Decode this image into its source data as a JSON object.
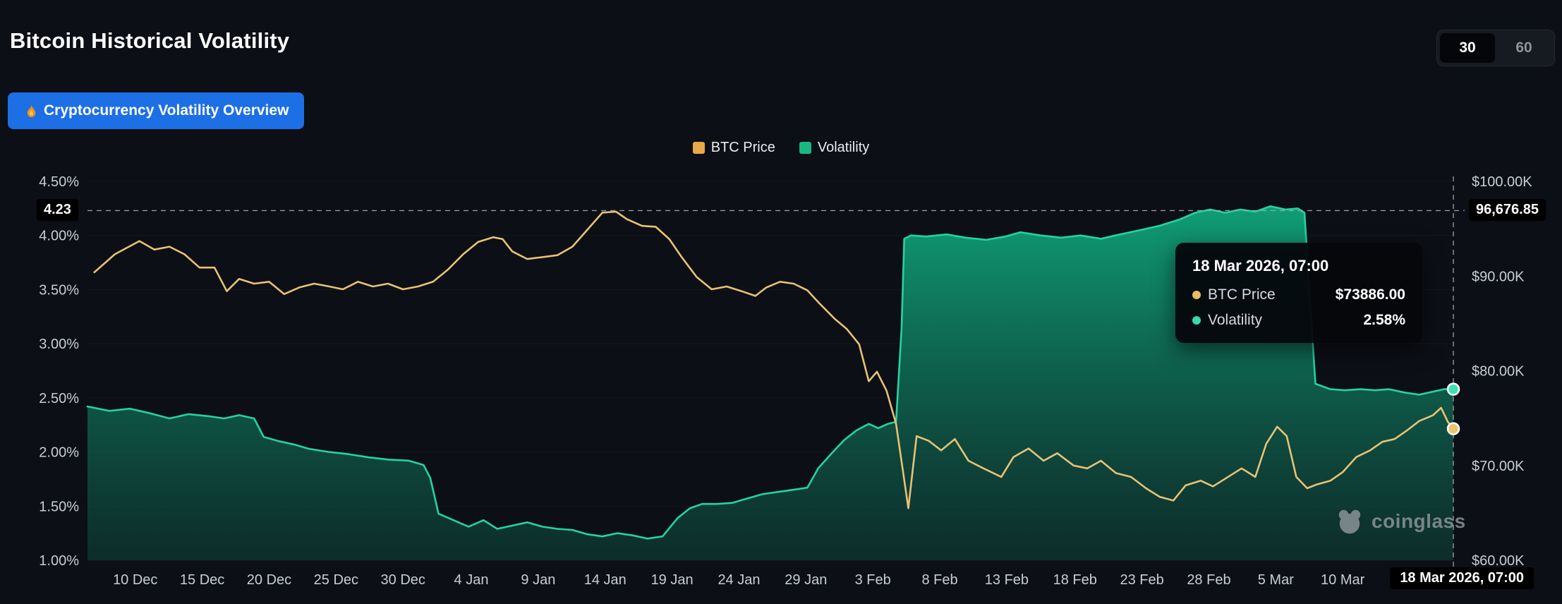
{
  "header": {
    "title": "Bitcoin Historical Volatility",
    "periods": [
      "30",
      "60"
    ],
    "active_period": "30"
  },
  "overview_button": {
    "label": "Cryptocurrency Volatility Overview",
    "icon": "fire-icon"
  },
  "legend": {
    "items": [
      {
        "label": "BTC Price",
        "color": "#e9a84a"
      },
      {
        "label": "Volatility",
        "color": "#19b883"
      }
    ]
  },
  "watermark": {
    "text": "coinglass"
  },
  "chart_data": {
    "type": "line",
    "title": "Bitcoin Historical Volatility",
    "grid": false,
    "legend_position": "top-center",
    "left_axis": {
      "min": 1.0,
      "max": 4.5,
      "unit": "%",
      "ticks": [
        {
          "value": 4.5,
          "label": "4.50%"
        },
        {
          "value": 4.0,
          "label": "4.00%"
        },
        {
          "value": 3.5,
          "label": "3.50%"
        },
        {
          "value": 3.0,
          "label": "3.00%"
        },
        {
          "value": 2.5,
          "label": "2.50%"
        },
        {
          "value": 2.0,
          "label": "2.00%"
        },
        {
          "value": 1.5,
          "label": "1.50%"
        },
        {
          "value": 1.0,
          "label": "1.00%"
        }
      ]
    },
    "right_axis": {
      "min": 60,
      "max": 100,
      "unit": "$K",
      "ticks": [
        {
          "value": 100,
          "label": "$100.00K"
        },
        {
          "value": 90,
          "label": "$90.00K"
        },
        {
          "value": 80,
          "label": "$80.00K"
        },
        {
          "value": 70,
          "label": "$70.00K"
        },
        {
          "value": 60,
          "label": "$60.00K"
        }
      ]
    },
    "x_axis": {
      "ticks": [
        {
          "label": "10 Dec",
          "f": 0.035
        },
        {
          "label": "15 Dec",
          "f": 0.084
        },
        {
          "label": "20 Dec",
          "f": 0.133
        },
        {
          "label": "25 Dec",
          "f": 0.182
        },
        {
          "label": "30 Dec",
          "f": 0.231
        },
        {
          "label": "4 Jan",
          "f": 0.281
        },
        {
          "label": "9 Jan",
          "f": 0.33
        },
        {
          "label": "14 Jan",
          "f": 0.379
        },
        {
          "label": "19 Jan",
          "f": 0.428
        },
        {
          "label": "24 Jan",
          "f": 0.477
        },
        {
          "label": "29 Jan",
          "f": 0.526
        },
        {
          "label": "3 Feb",
          "f": 0.575
        },
        {
          "label": "8 Feb",
          "f": 0.624
        },
        {
          "label": "13 Feb",
          "f": 0.673
        },
        {
          "label": "18 Feb",
          "f": 0.723
        },
        {
          "label": "23 Feb",
          "f": 0.772
        },
        {
          "label": "28 Feb",
          "f": 0.821
        },
        {
          "label": "5 Mar",
          "f": 0.87
        },
        {
          "label": "10 Mar",
          "f": 0.919
        }
      ]
    },
    "series": [
      {
        "name": "BTC Price",
        "axis": "right",
        "unit": "$K",
        "color": "#e8c272",
        "points": [
          [
            0.005,
            90.4
          ],
          [
            0.02,
            92.3
          ],
          [
            0.038,
            93.7
          ],
          [
            0.049,
            92.8
          ],
          [
            0.06,
            93.1
          ],
          [
            0.071,
            92.3
          ],
          [
            0.082,
            90.9
          ],
          [
            0.093,
            90.9
          ],
          [
            0.102,
            88.4
          ],
          [
            0.111,
            89.7
          ],
          [
            0.122,
            89.2
          ],
          [
            0.133,
            89.4
          ],
          [
            0.144,
            88.1
          ],
          [
            0.155,
            88.8
          ],
          [
            0.166,
            89.2
          ],
          [
            0.177,
            88.9
          ],
          [
            0.187,
            88.6
          ],
          [
            0.198,
            89.4
          ],
          [
            0.209,
            88.9
          ],
          [
            0.22,
            89.2
          ],
          [
            0.231,
            88.6
          ],
          [
            0.242,
            88.9
          ],
          [
            0.253,
            89.4
          ],
          [
            0.264,
            90.7
          ],
          [
            0.275,
            92.3
          ],
          [
            0.286,
            93.6
          ],
          [
            0.297,
            94.1
          ],
          [
            0.304,
            93.9
          ],
          [
            0.311,
            92.6
          ],
          [
            0.322,
            91.8
          ],
          [
            0.333,
            92.0
          ],
          [
            0.344,
            92.2
          ],
          [
            0.355,
            93.1
          ],
          [
            0.366,
            94.9
          ],
          [
            0.377,
            96.7
          ],
          [
            0.387,
            96.8
          ],
          [
            0.395,
            96.0
          ],
          [
            0.406,
            95.3
          ],
          [
            0.416,
            95.2
          ],
          [
            0.426,
            93.9
          ],
          [
            0.435,
            92.0
          ],
          [
            0.446,
            89.9
          ],
          [
            0.457,
            88.6
          ],
          [
            0.468,
            88.9
          ],
          [
            0.479,
            88.4
          ],
          [
            0.489,
            87.9
          ],
          [
            0.497,
            88.8
          ],
          [
            0.507,
            89.4
          ],
          [
            0.517,
            89.2
          ],
          [
            0.527,
            88.5
          ],
          [
            0.536,
            87.1
          ],
          [
            0.547,
            85.5
          ],
          [
            0.556,
            84.4
          ],
          [
            0.565,
            82.8
          ],
          [
            0.572,
            78.9
          ],
          [
            0.578,
            79.9
          ],
          [
            0.585,
            77.9
          ],
          [
            0.592,
            74.4
          ],
          [
            0.601,
            65.5
          ],
          [
            0.607,
            73.1
          ],
          [
            0.616,
            72.6
          ],
          [
            0.625,
            71.6
          ],
          [
            0.635,
            72.8
          ],
          [
            0.645,
            70.5
          ],
          [
            0.656,
            69.7
          ],
          [
            0.669,
            68.8
          ],
          [
            0.678,
            70.9
          ],
          [
            0.689,
            71.8
          ],
          [
            0.7,
            70.5
          ],
          [
            0.71,
            71.3
          ],
          [
            0.722,
            70.0
          ],
          [
            0.732,
            69.7
          ],
          [
            0.742,
            70.5
          ],
          [
            0.753,
            69.2
          ],
          [
            0.764,
            68.8
          ],
          [
            0.775,
            67.6
          ],
          [
            0.785,
            66.7
          ],
          [
            0.795,
            66.3
          ],
          [
            0.804,
            67.9
          ],
          [
            0.815,
            68.4
          ],
          [
            0.824,
            67.8
          ],
          [
            0.834,
            68.7
          ],
          [
            0.845,
            69.7
          ],
          [
            0.855,
            68.8
          ],
          [
            0.863,
            72.3
          ],
          [
            0.871,
            74.1
          ],
          [
            0.878,
            73.1
          ],
          [
            0.885,
            68.8
          ],
          [
            0.893,
            67.6
          ],
          [
            0.9,
            68.0
          ],
          [
            0.91,
            68.4
          ],
          [
            0.919,
            69.3
          ],
          [
            0.929,
            70.9
          ],
          [
            0.939,
            71.6
          ],
          [
            0.948,
            72.5
          ],
          [
            0.957,
            72.8
          ],
          [
            0.966,
            73.7
          ],
          [
            0.975,
            74.7
          ],
          [
            0.985,
            75.3
          ],
          [
            0.991,
            76.1
          ],
          [
            0.996,
            74.6
          ],
          [
            1.0,
            73.886
          ]
        ]
      },
      {
        "name": "Volatility",
        "axis": "left",
        "unit": "%",
        "color": "#24d3a0",
        "area_top": "#10b183",
        "area_top_opacity": 0.95,
        "area_bottom": "#0e4b41",
        "area_bottom_opacity": 0.5,
        "points": [
          [
            0.0,
            2.42
          ],
          [
            0.016,
            2.38
          ],
          [
            0.031,
            2.4
          ],
          [
            0.045,
            2.36
          ],
          [
            0.06,
            2.31
          ],
          [
            0.074,
            2.35
          ],
          [
            0.089,
            2.33
          ],
          [
            0.1,
            2.31
          ],
          [
            0.111,
            2.34
          ],
          [
            0.122,
            2.31
          ],
          [
            0.129,
            2.14
          ],
          [
            0.14,
            2.1
          ],
          [
            0.151,
            2.07
          ],
          [
            0.162,
            2.03
          ],
          [
            0.177,
            2.0
          ],
          [
            0.191,
            1.98
          ],
          [
            0.206,
            1.95
          ],
          [
            0.22,
            1.93
          ],
          [
            0.235,
            1.92
          ],
          [
            0.246,
            1.88
          ],
          [
            0.251,
            1.76
          ],
          [
            0.257,
            1.43
          ],
          [
            0.268,
            1.37
          ],
          [
            0.279,
            1.31
          ],
          [
            0.29,
            1.37
          ],
          [
            0.3,
            1.29
          ],
          [
            0.311,
            1.32
          ],
          [
            0.322,
            1.35
          ],
          [
            0.333,
            1.31
          ],
          [
            0.344,
            1.29
          ],
          [
            0.355,
            1.28
          ],
          [
            0.366,
            1.24
          ],
          [
            0.377,
            1.22
          ],
          [
            0.388,
            1.25
          ],
          [
            0.399,
            1.23
          ],
          [
            0.41,
            1.2
          ],
          [
            0.421,
            1.22
          ],
          [
            0.432,
            1.39
          ],
          [
            0.441,
            1.48
          ],
          [
            0.45,
            1.52
          ],
          [
            0.461,
            1.52
          ],
          [
            0.472,
            1.53
          ],
          [
            0.483,
            1.57
          ],
          [
            0.494,
            1.61
          ],
          [
            0.505,
            1.63
          ],
          [
            0.516,
            1.65
          ],
          [
            0.527,
            1.67
          ],
          [
            0.535,
            1.85
          ],
          [
            0.545,
            1.99
          ],
          [
            0.554,
            2.11
          ],
          [
            0.563,
            2.2
          ],
          [
            0.572,
            2.26
          ],
          [
            0.579,
            2.22
          ],
          [
            0.586,
            2.26
          ],
          [
            0.592,
            2.28
          ],
          [
            0.596,
            3.14
          ],
          [
            0.598,
            3.97
          ],
          [
            0.603,
            4.0
          ],
          [
            0.614,
            3.99
          ],
          [
            0.629,
            4.01
          ],
          [
            0.643,
            3.98
          ],
          [
            0.658,
            3.96
          ],
          [
            0.672,
            3.99
          ],
          [
            0.683,
            4.03
          ],
          [
            0.698,
            4.0
          ],
          [
            0.713,
            3.98
          ],
          [
            0.727,
            4.0
          ],
          [
            0.742,
            3.97
          ],
          [
            0.756,
            4.01
          ],
          [
            0.771,
            4.05
          ],
          [
            0.785,
            4.09
          ],
          [
            0.8,
            4.15
          ],
          [
            0.811,
            4.21
          ],
          [
            0.822,
            4.24
          ],
          [
            0.833,
            4.21
          ],
          [
            0.844,
            4.24
          ],
          [
            0.855,
            4.22
          ],
          [
            0.866,
            4.27
          ],
          [
            0.877,
            4.24
          ],
          [
            0.886,
            4.25
          ],
          [
            0.891,
            4.21
          ],
          [
            0.895,
            3.41
          ],
          [
            0.899,
            2.63
          ],
          [
            0.91,
            2.58
          ],
          [
            0.921,
            2.57
          ],
          [
            0.932,
            2.58
          ],
          [
            0.943,
            2.57
          ],
          [
            0.953,
            2.58
          ],
          [
            0.964,
            2.55
          ],
          [
            0.975,
            2.53
          ],
          [
            0.986,
            2.56
          ],
          [
            0.993,
            2.58
          ],
          [
            1.0,
            2.58
          ]
        ]
      }
    ],
    "crosshair": {
      "x_fraction": 1.0,
      "left_axis_value": 4.23,
      "left_label": "4.23",
      "right_label": "96,676.85",
      "x_label": "18 Mar 2026, 07:00"
    },
    "tooltip": {
      "title": "18 Mar 2026, 07:00",
      "rows": [
        {
          "label": "BTC Price",
          "value": "$73886.00",
          "color": "#e9bc5e"
        },
        {
          "label": "Volatility",
          "value": "2.58%",
          "color": "#36d9ac"
        }
      ]
    }
  }
}
